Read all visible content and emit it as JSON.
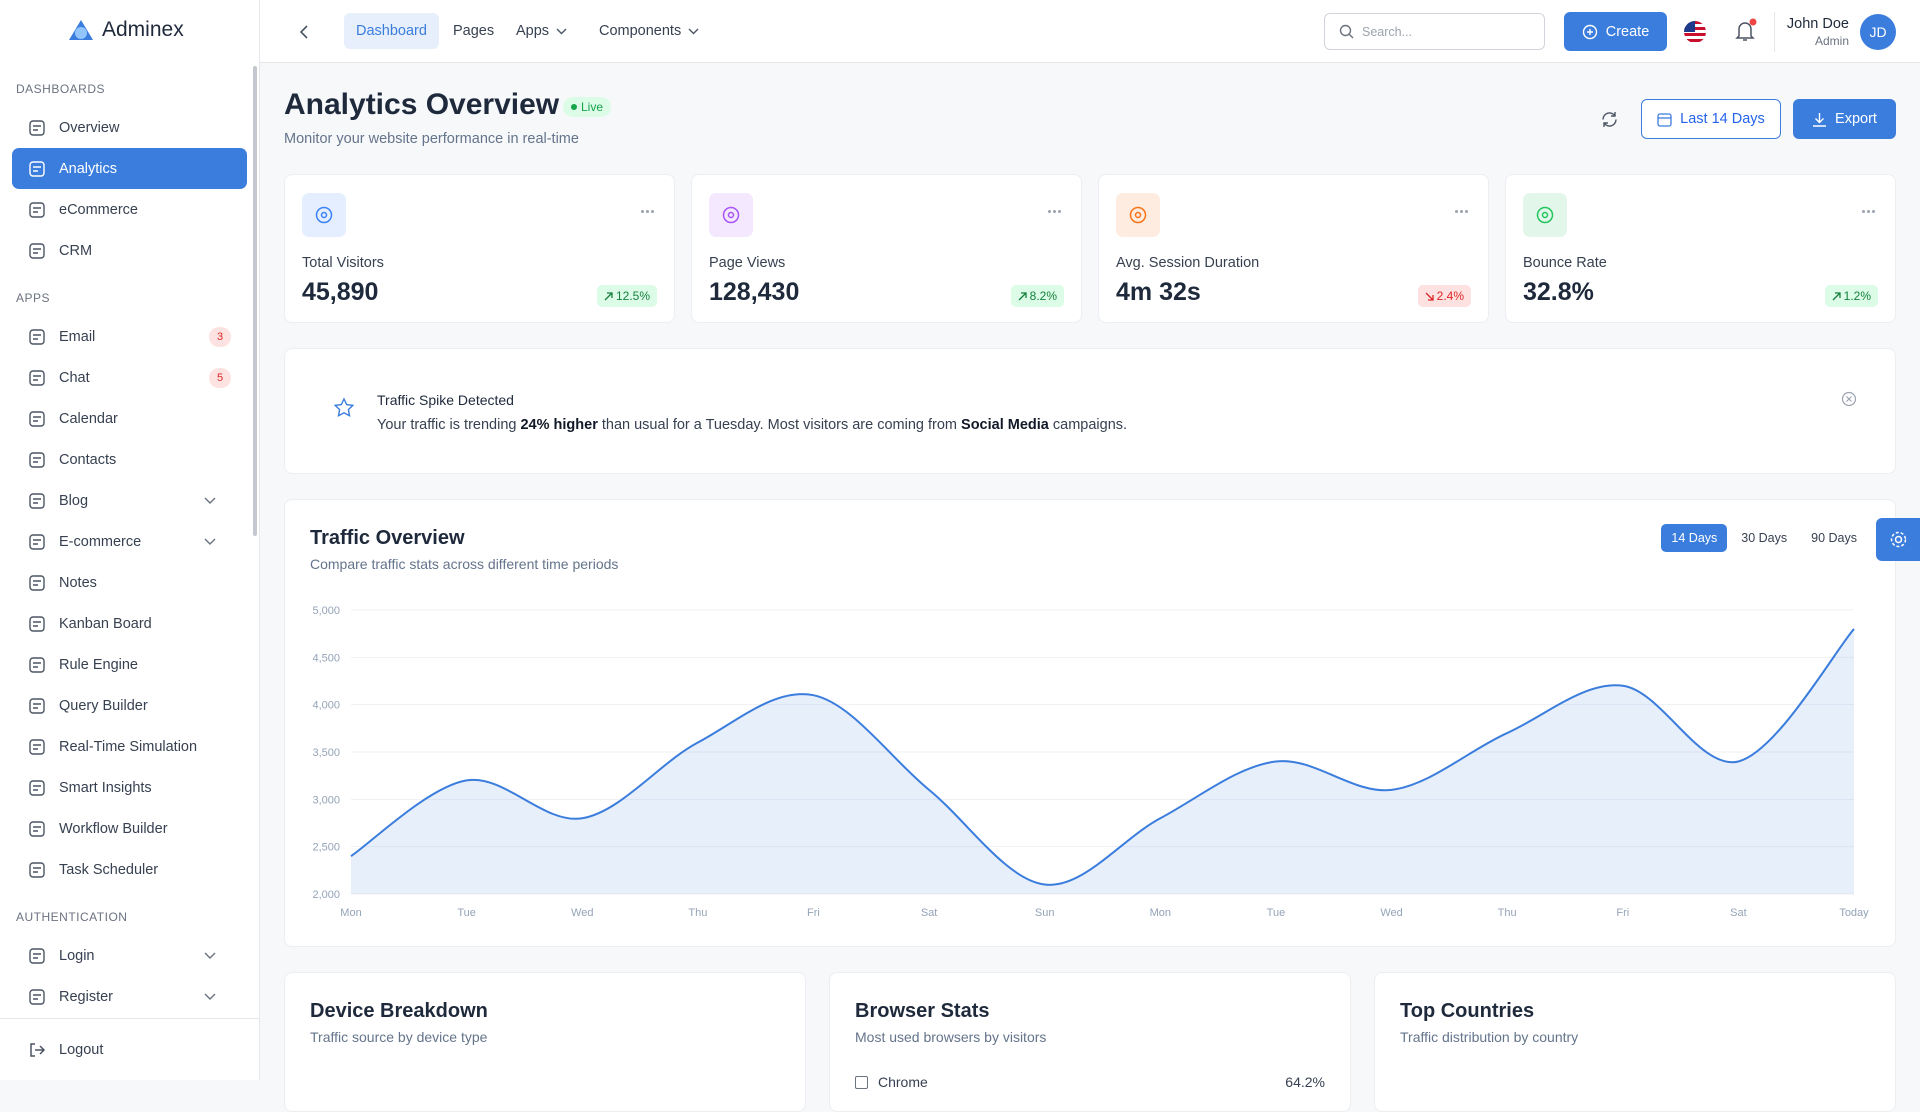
{
  "brand": "Adminex",
  "nav": [
    "Dashboard",
    "Pages",
    "Apps",
    "Components"
  ],
  "search_placeholder": "Search...",
  "create": "Create",
  "user": {
    "name": "John Doe",
    "role": "Admin",
    "initials": "JD"
  },
  "sidebar": {
    "sections": [
      {
        "title": "DASHBOARDS",
        "items": [
          {
            "label": "Overview"
          },
          {
            "label": "Analytics",
            "active": true
          },
          {
            "label": "eCommerce"
          },
          {
            "label": "CRM"
          }
        ]
      },
      {
        "title": "APPS",
        "items": [
          {
            "label": "Email",
            "badge": "3"
          },
          {
            "label": "Chat",
            "badge": "5"
          },
          {
            "label": "Calendar"
          },
          {
            "label": "Contacts"
          },
          {
            "label": "Blog",
            "expandable": true
          },
          {
            "label": "E-commerce",
            "expandable": true
          },
          {
            "label": "Notes"
          },
          {
            "label": "Kanban Board"
          },
          {
            "label": "Rule Engine"
          },
          {
            "label": "Query Builder"
          },
          {
            "label": "Real-Time Simulation"
          },
          {
            "label": "Smart Insights"
          },
          {
            "label": "Workflow Builder"
          },
          {
            "label": "Task Scheduler"
          }
        ]
      },
      {
        "title": "AUTHENTICATION",
        "items": [
          {
            "label": "Login",
            "expandable": true
          },
          {
            "label": "Register",
            "expandable": true
          }
        ]
      }
    ],
    "logout": "Logout"
  },
  "page": {
    "title": "Analytics Overview",
    "badge": "Live",
    "subtitle": "Monitor your website performance in real-time",
    "range": "Last 14 Days",
    "export": "Export"
  },
  "stats": [
    {
      "label": "Total Visitors",
      "value": "45,890",
      "change": "12.5%",
      "trend": "up",
      "color": "#3b82f6"
    },
    {
      "label": "Page Views",
      "value": "128,430",
      "change": "8.2%",
      "trend": "up",
      "color": "#a855f7"
    },
    {
      "label": "Avg. Session Duration",
      "value": "4m 32s",
      "change": "2.4%",
      "trend": "down",
      "color": "#f97316"
    },
    {
      "label": "Bounce Rate",
      "value": "32.8%",
      "change": "1.2%",
      "trend": "up",
      "color": "#22c55e"
    }
  ],
  "alert": {
    "title": "Traffic Spike Detected",
    "text": [
      {
        "text": "Your traffic is trending "
      },
      {
        "text": "24% higher",
        "bold": true
      },
      {
        "text": " than usual for a Tuesday. Most visitors are coming from "
      },
      {
        "text": "Social Media",
        "bold": true
      },
      {
        "text": " campaigns."
      }
    ]
  },
  "chart_data": {
    "type": "area",
    "title": "Traffic Overview",
    "subtitle": "Compare traffic stats across different time periods",
    "tabs": [
      "14 Days",
      "30 Days",
      "90 Days"
    ],
    "active_tab": 0,
    "categories": [
      "Mon",
      "Tue",
      "Wed",
      "Thu",
      "Fri",
      "Sat",
      "Sun",
      "Mon",
      "Tue",
      "Wed",
      "Thu",
      "Fri",
      "Sat",
      "Today"
    ],
    "values": [
      2400,
      3200,
      2800,
      3600,
      4100,
      3100,
      2100,
      2800,
      3400,
      3100,
      3700,
      4200,
      3400,
      4800
    ],
    "color": "#3b7ddd",
    "ylim": [
      2000,
      5000
    ],
    "yticks": [
      {
        "value": 2000,
        "label": "2,000"
      },
      {
        "value": 2500,
        "label": "2,500"
      },
      {
        "value": 3000,
        "label": "3,000"
      },
      {
        "value": 3500,
        "label": "3,500"
      },
      {
        "value": 4000,
        "label": "4,000"
      },
      {
        "value": 4500,
        "label": "4,500"
      },
      {
        "value": 5000,
        "label": "5,000"
      }
    ],
    "grid": true
  },
  "cards": [
    {
      "title": "Device Breakdown",
      "subtitle": "Traffic source by device type"
    },
    {
      "title": "Browser Stats",
      "subtitle": "Most used browsers by visitors",
      "rows": [
        {
          "name": "Chrome",
          "value": "64.2%"
        }
      ]
    },
    {
      "title": "Top Countries",
      "subtitle": "Traffic distribution by country"
    }
  ]
}
